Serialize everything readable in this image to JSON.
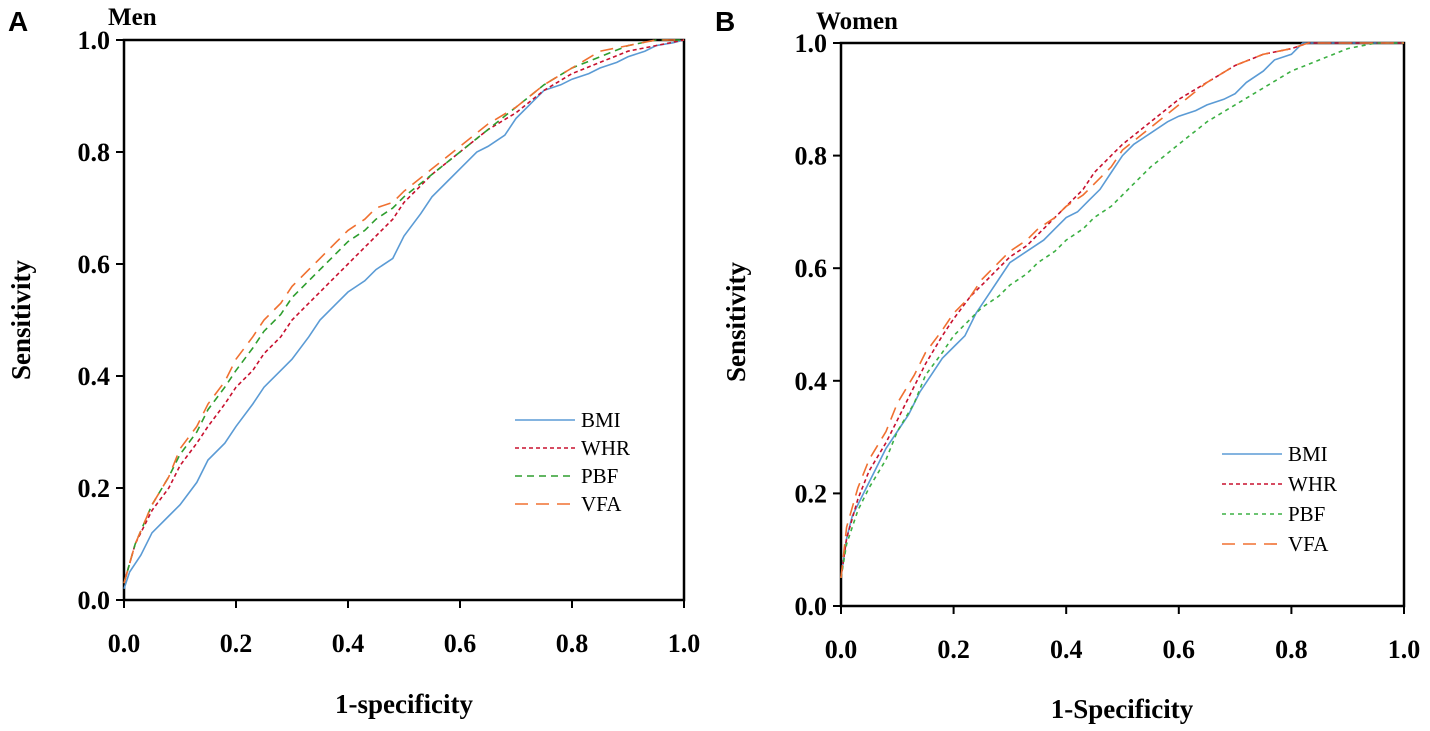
{
  "chart_data": [
    {
      "type": "line",
      "panel_label": "A",
      "title": "Men",
      "xlabel": "1-specificity",
      "ylabel": "Sensitivity",
      "xlim": [
        0,
        1
      ],
      "ylim": [
        0,
        1
      ],
      "xticks": [
        "0.0",
        "0.2",
        "0.4",
        "0.6",
        "0.8",
        "1.0"
      ],
      "yticks": [
        "0.0",
        "0.2",
        "0.4",
        "0.6",
        "0.8",
        "1.0"
      ],
      "legend_position": "bottom-right",
      "series": [
        {
          "name": "BMI",
          "color": "#5B9BD5",
          "dash": "solid",
          "x": [
            0,
            0.01,
            0.03,
            0.05,
            0.08,
            0.1,
            0.13,
            0.15,
            0.18,
            0.2,
            0.23,
            0.25,
            0.28,
            0.3,
            0.33,
            0.35,
            0.38,
            0.4,
            0.43,
            0.45,
            0.48,
            0.5,
            0.53,
            0.55,
            0.58,
            0.6,
            0.63,
            0.65,
            0.68,
            0.7,
            0.73,
            0.75,
            0.78,
            0.8,
            0.83,
            0.85,
            0.88,
            0.9,
            0.93,
            0.95,
            0.98,
            1
          ],
          "y": [
            0.02,
            0.05,
            0.08,
            0.12,
            0.15,
            0.17,
            0.21,
            0.25,
            0.28,
            0.31,
            0.35,
            0.38,
            0.41,
            0.43,
            0.47,
            0.5,
            0.53,
            0.55,
            0.57,
            0.59,
            0.61,
            0.65,
            0.69,
            0.72,
            0.75,
            0.77,
            0.8,
            0.81,
            0.83,
            0.86,
            0.89,
            0.91,
            0.92,
            0.93,
            0.94,
            0.95,
            0.96,
            0.97,
            0.98,
            0.99,
            0.995,
            1
          ]
        },
        {
          "name": "WHR",
          "color": "#C8102E",
          "dash": "4,3",
          "x": [
            0,
            0.02,
            0.05,
            0.08,
            0.1,
            0.13,
            0.15,
            0.18,
            0.2,
            0.23,
            0.25,
            0.28,
            0.3,
            0.33,
            0.35,
            0.38,
            0.4,
            0.43,
            0.45,
            0.48,
            0.5,
            0.55,
            0.6,
            0.65,
            0.7,
            0.75,
            0.8,
            0.85,
            0.9,
            0.95,
            1
          ],
          "y": [
            0.03,
            0.1,
            0.16,
            0.2,
            0.24,
            0.28,
            0.31,
            0.35,
            0.38,
            0.41,
            0.44,
            0.47,
            0.5,
            0.53,
            0.55,
            0.58,
            0.6,
            0.63,
            0.65,
            0.68,
            0.71,
            0.76,
            0.8,
            0.84,
            0.87,
            0.91,
            0.94,
            0.96,
            0.98,
            0.99,
            1
          ]
        },
        {
          "name": "PBF",
          "color": "#2E9E2E",
          "dash": "7,5",
          "x": [
            0,
            0.02,
            0.05,
            0.08,
            0.1,
            0.13,
            0.15,
            0.18,
            0.2,
            0.23,
            0.25,
            0.28,
            0.3,
            0.33,
            0.35,
            0.38,
            0.4,
            0.43,
            0.45,
            0.48,
            0.5,
            0.55,
            0.6,
            0.65,
            0.7,
            0.75,
            0.8,
            0.85,
            0.9,
            0.95,
            1
          ],
          "y": [
            0.03,
            0.1,
            0.17,
            0.22,
            0.26,
            0.3,
            0.34,
            0.38,
            0.41,
            0.45,
            0.48,
            0.51,
            0.54,
            0.57,
            0.59,
            0.62,
            0.64,
            0.66,
            0.68,
            0.7,
            0.72,
            0.76,
            0.8,
            0.84,
            0.88,
            0.92,
            0.95,
            0.97,
            0.99,
            1,
            1
          ]
        },
        {
          "name": "VFA",
          "color": "#F07030",
          "dash": "13,8",
          "x": [
            0,
            0.02,
            0.05,
            0.08,
            0.1,
            0.13,
            0.15,
            0.18,
            0.2,
            0.23,
            0.25,
            0.28,
            0.3,
            0.33,
            0.35,
            0.38,
            0.4,
            0.43,
            0.45,
            0.48,
            0.5,
            0.55,
            0.6,
            0.65,
            0.7,
            0.75,
            0.8,
            0.85,
            0.9,
            0.95,
            1
          ],
          "y": [
            0.03,
            0.1,
            0.17,
            0.22,
            0.27,
            0.31,
            0.35,
            0.39,
            0.43,
            0.47,
            0.5,
            0.53,
            0.56,
            0.59,
            0.61,
            0.64,
            0.66,
            0.68,
            0.7,
            0.71,
            0.73,
            0.77,
            0.81,
            0.85,
            0.88,
            0.92,
            0.95,
            0.98,
            0.99,
            1,
            1
          ]
        }
      ]
    },
    {
      "type": "line",
      "panel_label": "B",
      "title": "Women",
      "xlabel": "1-Specificity",
      "ylabel": "Sensitivity",
      "xlim": [
        0,
        1
      ],
      "ylim": [
        0,
        1
      ],
      "xticks": [
        "0.0",
        "0.2",
        "0.4",
        "0.6",
        "0.8",
        "1.0"
      ],
      "yticks": [
        "0.0",
        "0.2",
        "0.4",
        "0.6",
        "0.8",
        "1.0"
      ],
      "legend_position": "bottom-right",
      "series": [
        {
          "name": "BMI",
          "color": "#5B9BD5",
          "dash": "solid",
          "x": [
            0,
            0.01,
            0.02,
            0.04,
            0.06,
            0.08,
            0.1,
            0.12,
            0.14,
            0.16,
            0.18,
            0.2,
            0.22,
            0.24,
            0.26,
            0.28,
            0.3,
            0.33,
            0.36,
            0.38,
            0.4,
            0.42,
            0.44,
            0.46,
            0.48,
            0.5,
            0.52,
            0.55,
            0.58,
            0.6,
            0.63,
            0.65,
            0.68,
            0.7,
            0.72,
            0.75,
            0.77,
            0.8,
            0.82,
            0.85,
            1
          ],
          "y": [
            0.05,
            0.12,
            0.16,
            0.2,
            0.24,
            0.28,
            0.31,
            0.34,
            0.38,
            0.41,
            0.44,
            0.46,
            0.48,
            0.52,
            0.55,
            0.58,
            0.61,
            0.63,
            0.65,
            0.67,
            0.69,
            0.7,
            0.72,
            0.74,
            0.77,
            0.8,
            0.82,
            0.84,
            0.86,
            0.87,
            0.88,
            0.89,
            0.9,
            0.91,
            0.93,
            0.95,
            0.97,
            0.98,
            1,
            1,
            1
          ]
        },
        {
          "name": "WHR",
          "color": "#C8102E",
          "dash": "4,3",
          "x": [
            0,
            0.01,
            0.03,
            0.05,
            0.08,
            0.1,
            0.13,
            0.15,
            0.18,
            0.2,
            0.23,
            0.25,
            0.28,
            0.3,
            0.33,
            0.35,
            0.38,
            0.4,
            0.43,
            0.45,
            0.48,
            0.5,
            0.55,
            0.6,
            0.65,
            0.7,
            0.75,
            0.8,
            0.83,
            1
          ],
          "y": [
            0.05,
            0.12,
            0.19,
            0.24,
            0.29,
            0.33,
            0.39,
            0.43,
            0.48,
            0.51,
            0.55,
            0.57,
            0.6,
            0.62,
            0.64,
            0.66,
            0.69,
            0.71,
            0.74,
            0.77,
            0.8,
            0.82,
            0.86,
            0.9,
            0.93,
            0.96,
            0.98,
            0.99,
            1,
            1
          ]
        },
        {
          "name": "PBF",
          "color": "#3CB043",
          "dash": "4,4",
          "x": [
            0,
            0.01,
            0.03,
            0.05,
            0.08,
            0.1,
            0.13,
            0.15,
            0.18,
            0.2,
            0.23,
            0.25,
            0.28,
            0.3,
            0.33,
            0.35,
            0.38,
            0.4,
            0.43,
            0.45,
            0.48,
            0.5,
            0.55,
            0.6,
            0.65,
            0.7,
            0.75,
            0.8,
            0.85,
            0.9,
            0.95,
            1
          ],
          "y": [
            0.05,
            0.11,
            0.17,
            0.21,
            0.26,
            0.31,
            0.36,
            0.41,
            0.45,
            0.48,
            0.51,
            0.53,
            0.55,
            0.57,
            0.59,
            0.61,
            0.63,
            0.65,
            0.67,
            0.69,
            0.71,
            0.73,
            0.78,
            0.82,
            0.86,
            0.89,
            0.92,
            0.95,
            0.97,
            0.99,
            1,
            1
          ]
        },
        {
          "name": "VFA",
          "color": "#F07030",
          "dash": "13,8",
          "x": [
            0,
            0.01,
            0.03,
            0.05,
            0.08,
            0.1,
            0.13,
            0.15,
            0.18,
            0.2,
            0.23,
            0.25,
            0.28,
            0.3,
            0.33,
            0.35,
            0.38,
            0.4,
            0.43,
            0.45,
            0.48,
            0.5,
            0.55,
            0.6,
            0.65,
            0.7,
            0.75,
            0.8,
            0.83,
            1
          ],
          "y": [
            0.05,
            0.14,
            0.21,
            0.26,
            0.31,
            0.36,
            0.41,
            0.45,
            0.49,
            0.52,
            0.55,
            0.58,
            0.61,
            0.63,
            0.65,
            0.67,
            0.69,
            0.71,
            0.73,
            0.75,
            0.78,
            0.81,
            0.85,
            0.89,
            0.93,
            0.96,
            0.98,
            0.99,
            1,
            1
          ]
        }
      ]
    }
  ]
}
